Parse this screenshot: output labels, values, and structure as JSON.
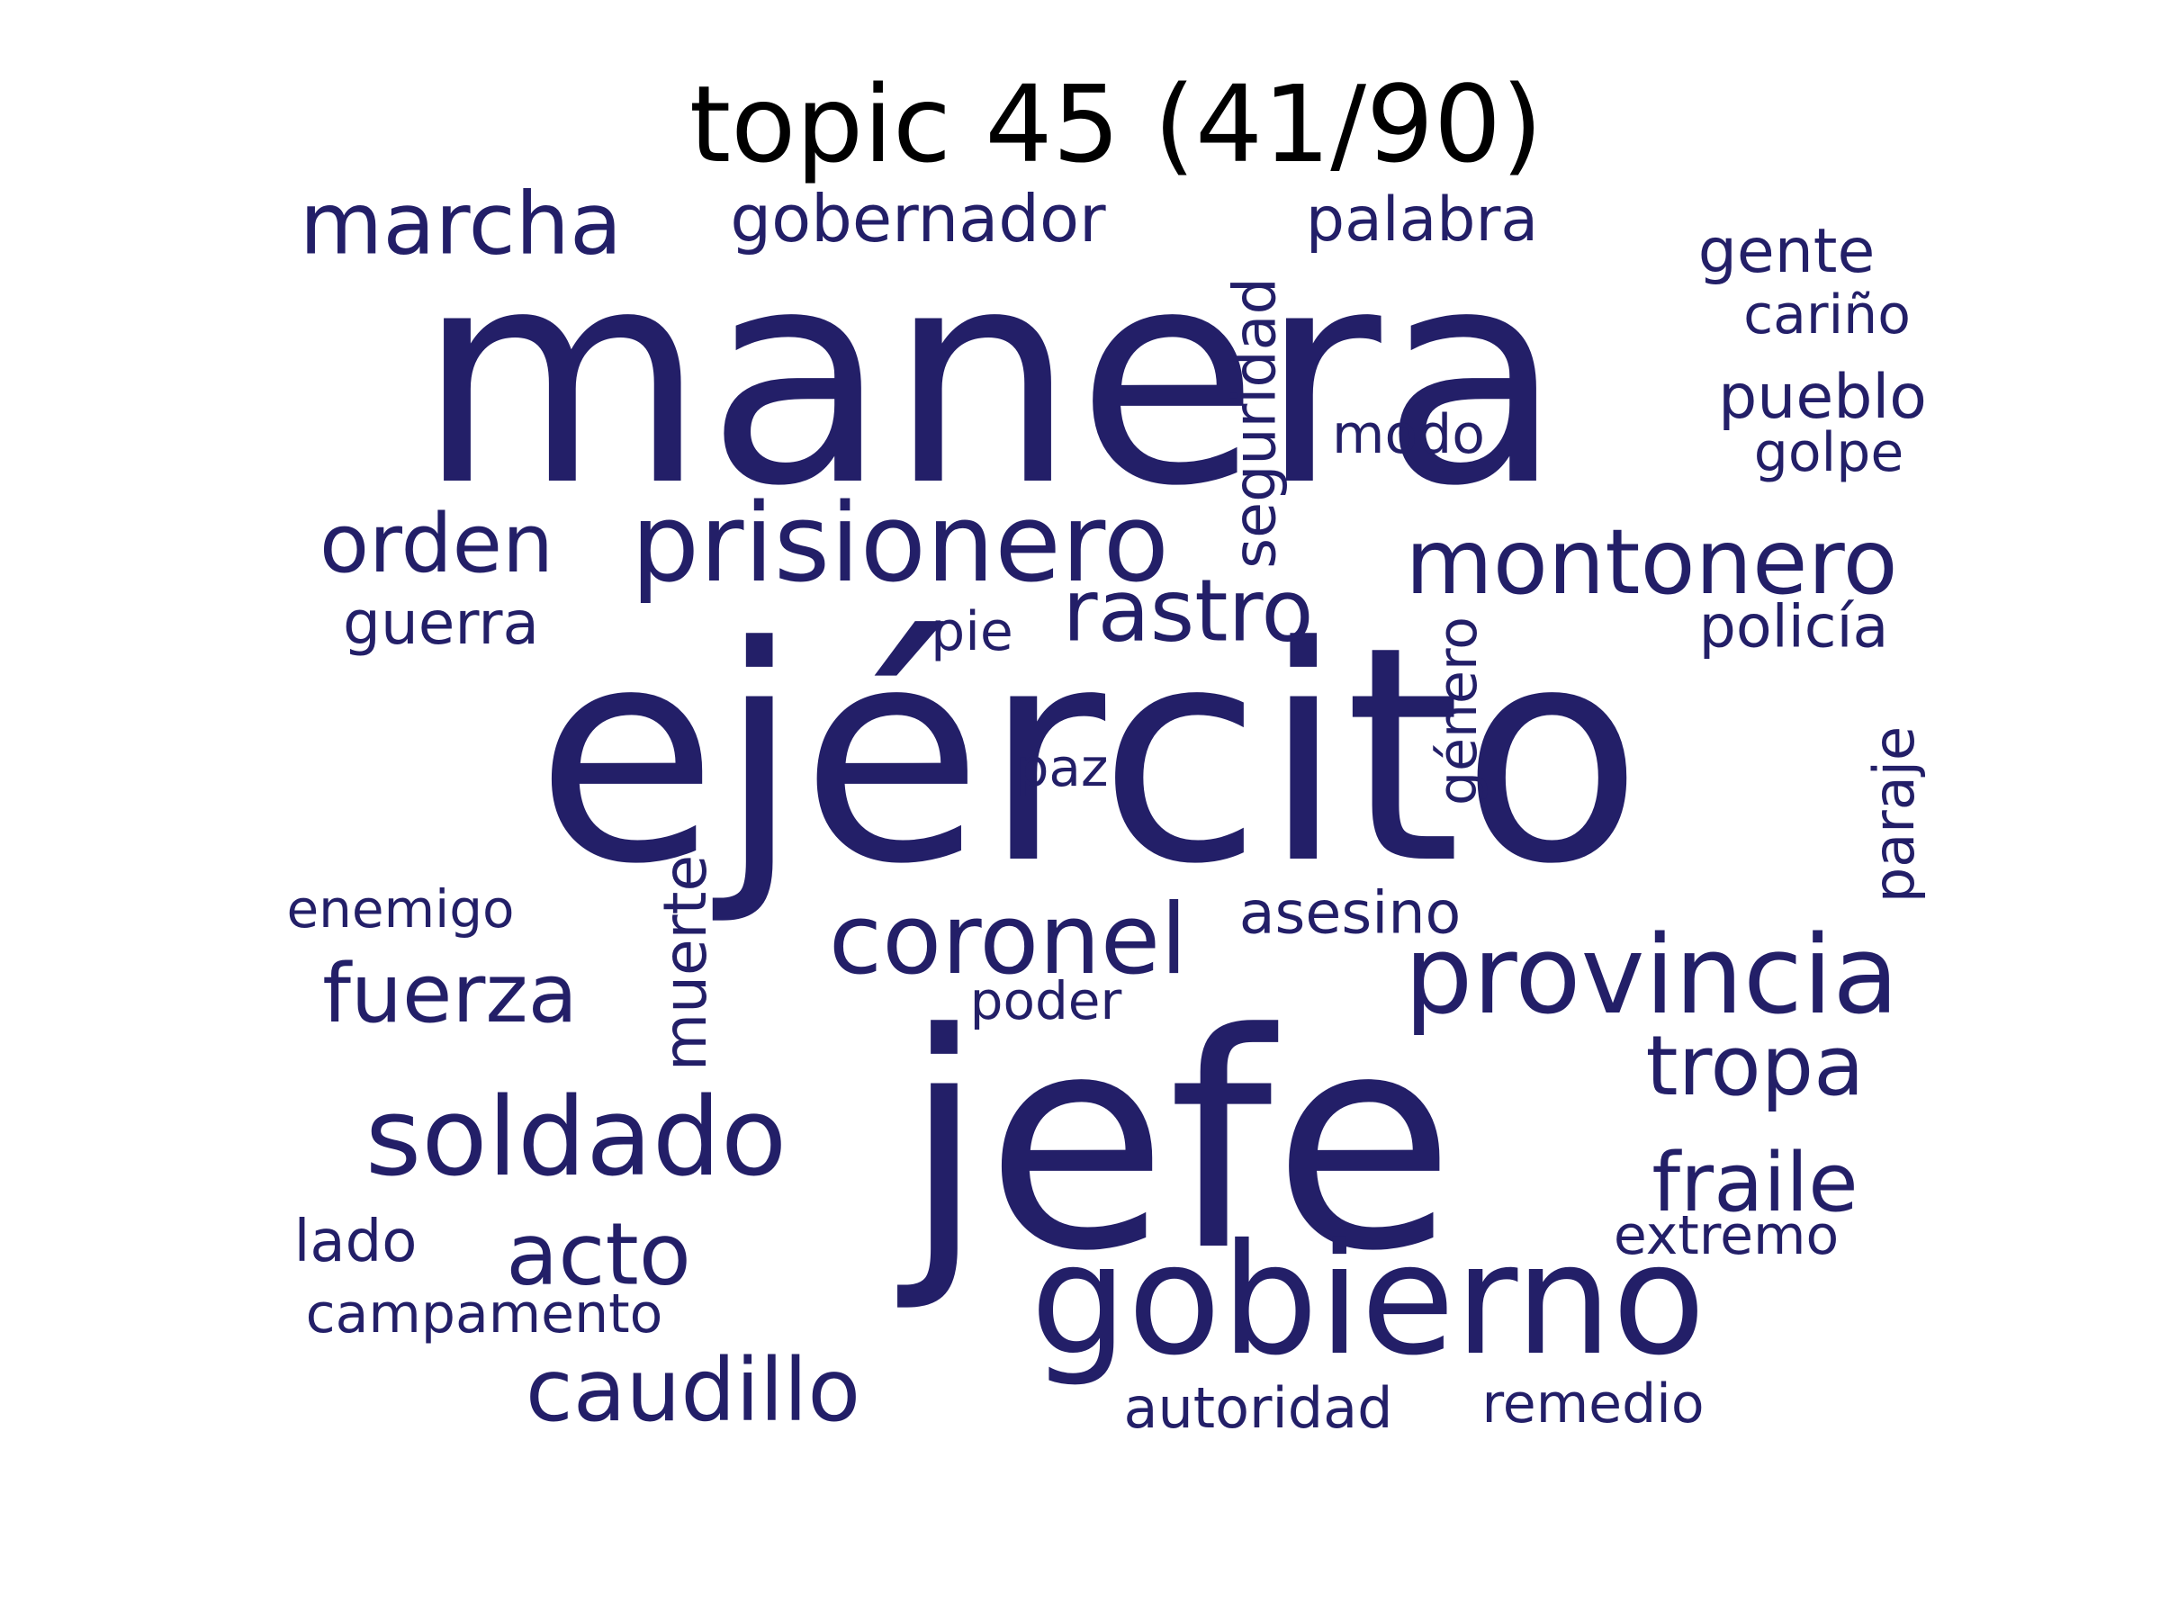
{
  "title": "topic 45 (41/90)",
  "color": "#231f68",
  "words": [
    {
      "text": "manera",
      "weight": 1.0
    },
    {
      "text": "ejército",
      "weight": 0.98
    },
    {
      "text": "jefe",
      "weight": 0.9
    },
    {
      "text": "gobierno",
      "weight": 0.48
    },
    {
      "text": "provincia",
      "weight": 0.34
    },
    {
      "text": "prisionero",
      "weight": 0.33
    },
    {
      "text": "montonero",
      "weight": 0.28
    },
    {
      "text": "soldado",
      "weight": 0.33
    },
    {
      "text": "coronel",
      "weight": 0.3
    },
    {
      "text": "caudillo",
      "weight": 0.27
    },
    {
      "text": "marcha",
      "weight": 0.28
    },
    {
      "text": "acto",
      "weight": 0.3
    },
    {
      "text": "rastro",
      "weight": 0.27
    },
    {
      "text": "tropa",
      "weight": 0.27
    },
    {
      "text": "fraile",
      "weight": 0.26
    },
    {
      "text": "fuerza",
      "weight": 0.27
    },
    {
      "text": "orden",
      "weight": 0.27
    },
    {
      "text": "gobernador",
      "weight": 0.2
    },
    {
      "text": "palabra",
      "weight": 0.19
    },
    {
      "text": "gente",
      "weight": 0.19
    },
    {
      "text": "pueblo",
      "weight": 0.19
    },
    {
      "text": "seguridad",
      "weight": 0.18
    },
    {
      "text": "asesino",
      "weight": 0.19
    },
    {
      "text": "policía",
      "weight": 0.18
    },
    {
      "text": "guerra",
      "weight": 0.18
    },
    {
      "text": "muerte",
      "weight": 0.18
    },
    {
      "text": "paraje",
      "weight": 0.17
    },
    {
      "text": "género",
      "weight": 0.17
    },
    {
      "text": "golpe",
      "weight": 0.17
    },
    {
      "text": "cariño",
      "weight": 0.16
    },
    {
      "text": "modo",
      "weight": 0.16
    },
    {
      "text": "pie",
      "weight": 0.16
    },
    {
      "text": "paz",
      "weight": 0.16
    },
    {
      "text": "enemigo",
      "weight": 0.16
    },
    {
      "text": "poder",
      "weight": 0.16
    },
    {
      "text": "lado",
      "weight": 0.17
    },
    {
      "text": "campamento",
      "weight": 0.16
    },
    {
      "text": "extremo",
      "weight": 0.16
    },
    {
      "text": "autoridad",
      "weight": 0.16
    },
    {
      "text": "remedio",
      "weight": 0.16
    }
  ]
}
